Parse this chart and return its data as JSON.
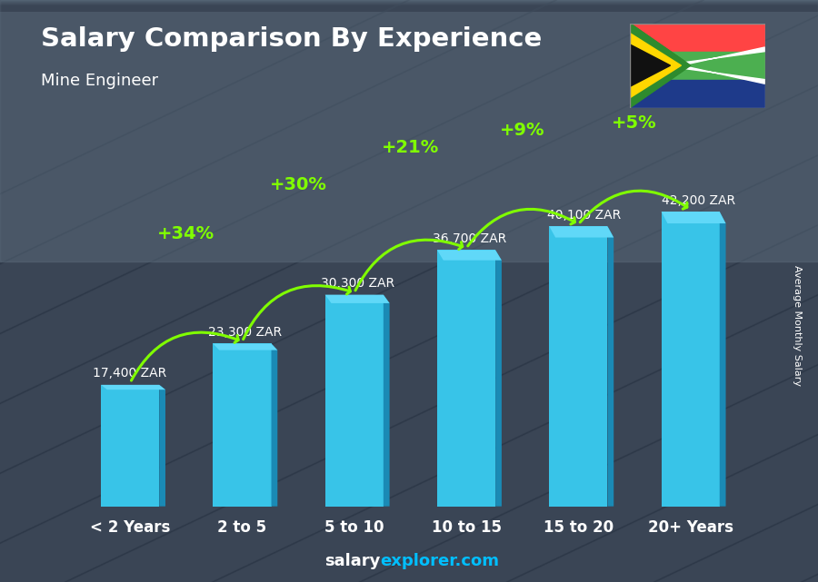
{
  "title": "Salary Comparison By Experience",
  "subtitle": "Mine Engineer",
  "categories": [
    "< 2 Years",
    "2 to 5",
    "5 to 10",
    "10 to 15",
    "15 to 20",
    "20+ Years"
  ],
  "values": [
    17400,
    23300,
    30300,
    36700,
    40100,
    42200
  ],
  "value_labels": [
    "17,400 ZAR",
    "23,300 ZAR",
    "30,300 ZAR",
    "36,700 ZAR",
    "40,100 ZAR",
    "42,200 ZAR"
  ],
  "pct_labels": [
    "+34%",
    "+30%",
    "+21%",
    "+9%",
    "+5%"
  ],
  "bar_color_main": "#38C4E8",
  "bar_color_dark": "#1A8AB5",
  "bar_color_right": "#2AADD4",
  "bar_color_top": "#60D8F8",
  "pct_color": "#80FF00",
  "title_color": "#FFFFFF",
  "subtitle_color": "#FFFFFF",
  "label_color": "#FFFFFF",
  "xlabel_color": "#FFFFFF",
  "bg_top": "#4a5a6a",
  "bg_bottom": "#1a2030",
  "footer_salary_color": "#FFFFFF",
  "footer_explorer_color": "#00BFFF",
  "ylabel_text": "Average Monthly Salary",
  "ylim": [
    0,
    50000
  ],
  "bar_width": 0.52
}
